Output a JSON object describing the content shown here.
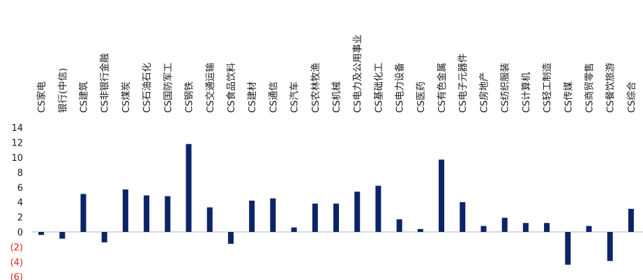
{
  "chart_data": {
    "type": "bar",
    "title": "",
    "xlabel": "",
    "ylabel": "",
    "ylim": [
      -6,
      14
    ],
    "yticks": [
      14,
      12,
      10,
      8,
      6,
      4,
      2,
      0,
      -2,
      -4,
      -6
    ],
    "ytick_labels": [
      "14",
      "12",
      "10",
      "8",
      "6",
      "4",
      "2",
      "0",
      "(2)",
      "(4)",
      "(6)"
    ],
    "grid": false,
    "legend": "none",
    "categories": [
      "CS家电",
      "银行(中信)",
      "CS建筑",
      "CS非银行金融",
      "CS煤炭",
      "CS石油石化",
      "CS国防军工",
      "CS钢铁",
      "CS交通运输",
      "CS食品饮料",
      "CS建材",
      "CS通信",
      "CS汽车",
      "CS农林牧渔",
      "CS机械",
      "CS电力及公用事业",
      "CS基础化工",
      "CS电力设备",
      "CS医药",
      "CS有色金属",
      "CS电子元器件",
      "CS房地产",
      "CS纺织服装",
      "CS计算机",
      "CS轻工制造",
      "CS传媒",
      "CS商贸零售",
      "CS餐饮旅游",
      "CS综合"
    ],
    "values": [
      -0.4,
      -0.9,
      5.1,
      -1.4,
      5.7,
      4.9,
      4.8,
      11.8,
      3.3,
      -1.6,
      4.2,
      4.5,
      0.6,
      3.8,
      3.8,
      5.4,
      6.2,
      1.7,
      0.4,
      9.7,
      4.0,
      0.8,
      1.9,
      1.2,
      1.2,
      -4.4,
      0.8,
      -3.9,
      3.1
    ],
    "colors": {
      "bar": "#0c2467",
      "axis": "#aab4cf",
      "tick_positive": "#1a1a1a",
      "tick_negative": "#e02020"
    }
  }
}
